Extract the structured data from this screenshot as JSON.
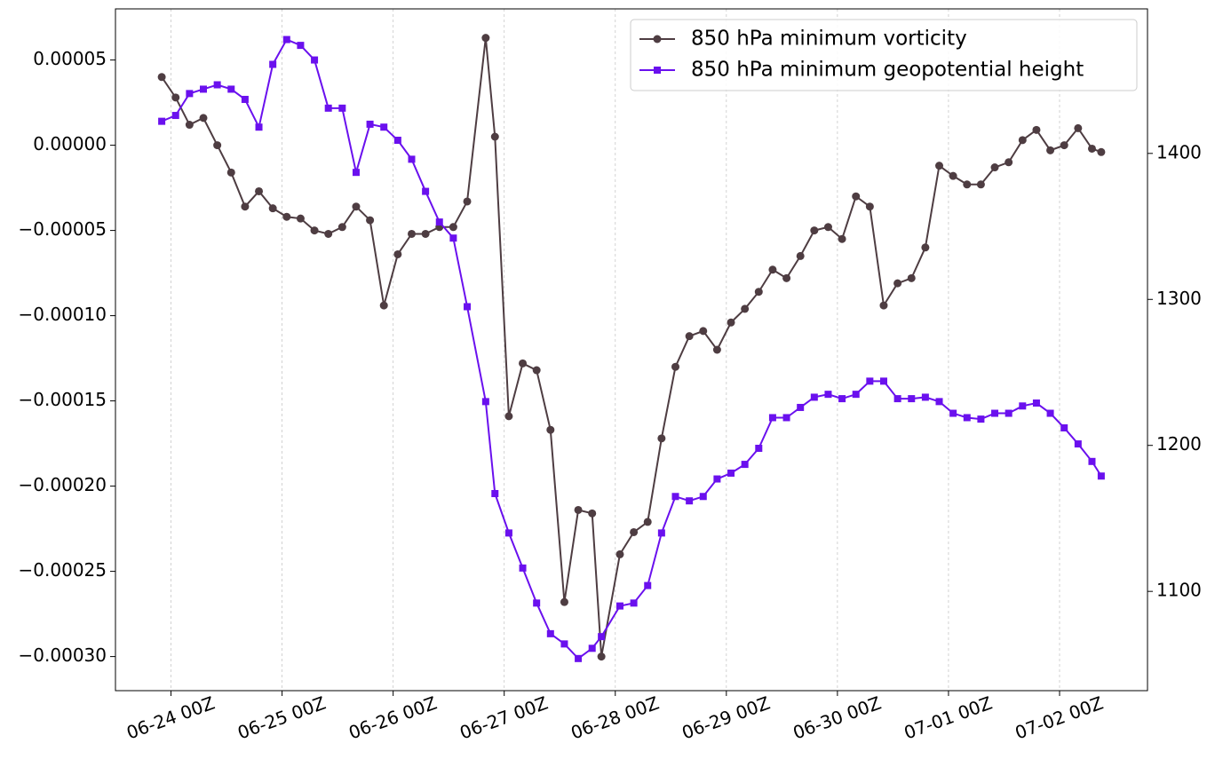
{
  "chart_data": {
    "type": "line",
    "x": [
      "06-23 22Z",
      "06-24 01Z",
      "06-24 04Z",
      "06-24 07Z",
      "06-24 10Z",
      "06-24 13Z",
      "06-24 16Z",
      "06-24 19Z",
      "06-24 22Z",
      "06-25 01Z",
      "06-25 04Z",
      "06-25 07Z",
      "06-25 10Z",
      "06-25 13Z",
      "06-25 16Z",
      "06-25 19Z",
      "06-25 22Z",
      "06-26 01Z",
      "06-26 04Z",
      "06-26 07Z",
      "06-26 10Z",
      "06-26 13Z",
      "06-26 16Z",
      "06-26 20Z",
      "06-26 22Z",
      "06-27 01Z",
      "06-27 04Z",
      "06-27 07Z",
      "06-27 10Z",
      "06-27 13Z",
      "06-27 16Z",
      "06-27 19Z",
      "06-27 21Z",
      "06-28 01Z",
      "06-28 04Z",
      "06-28 07Z",
      "06-28 10Z",
      "06-28 13Z",
      "06-28 16Z",
      "06-28 19Z",
      "06-28 22Z",
      "06-29 01Z",
      "06-29 04Z",
      "06-29 07Z",
      "06-29 10Z",
      "06-29 13Z",
      "06-29 16Z",
      "06-29 19Z",
      "06-29 22Z",
      "06-30 01Z",
      "06-30 04Z",
      "06-30 07Z",
      "06-30 10Z",
      "06-30 13Z",
      "06-30 16Z",
      "06-30 19Z",
      "06-30 22Z",
      "07-01 01Z",
      "07-01 04Z",
      "07-01 07Z",
      "07-01 10Z",
      "07-01 13Z",
      "07-01 16Z",
      "07-01 19Z",
      "07-01 22Z",
      "07-02 01Z",
      "07-02 04Z",
      "07-02 07Z",
      "07-02 09Z"
    ],
    "series": [
      {
        "name": "850 hPa minimum vorticity",
        "color": "#4e3d42",
        "marker": "circle",
        "values": [
          4e-05,
          2.8e-05,
          1.2e-05,
          1.6e-05,
          0,
          -1.6e-05,
          -3.6e-05,
          -2.7e-05,
          -3.7e-05,
          -4.2e-05,
          -4.3e-05,
          -5e-05,
          -5.2e-05,
          -4.8e-05,
          -3.6e-05,
          -4.4e-05,
          -9.4e-05,
          -6.4e-05,
          -5.2e-05,
          -5.2e-05,
          -4.8e-05,
          -4.8e-05,
          -3.3e-05,
          6.3e-05,
          5e-06,
          -0.000159,
          -0.000128,
          -0.000132,
          -0.000167,
          -0.000268,
          -0.000214,
          -0.000216,
          -0.0003,
          -0.00024,
          -0.000227,
          -0.000221,
          -0.000172,
          -0.00013,
          -0.000112,
          -0.000109,
          -0.00012,
          -0.000104,
          -9.6e-05,
          -8.6e-05,
          -7.3e-05,
          -7.8e-05,
          -6.5e-05,
          -5e-05,
          -4.8e-05,
          -5.5e-05,
          -3e-05,
          -3.6e-05,
          -9.4e-05,
          -8.1e-05,
          -7.8e-05,
          -6e-05,
          -1.2e-05,
          -1.8e-05,
          -2.3e-05,
          -2.3e-05,
          -1.3e-05,
          -1e-05,
          3e-06,
          9e-06,
          -3e-06,
          0,
          1e-05,
          -2e-06,
          -4e-06
        ]
      },
      {
        "name": "850 hPa minimum geopotential height",
        "color": "#6a10ee",
        "marker": "square",
        "axis": "y2",
        "values": [
          1422,
          1426,
          1441,
          1444,
          1447,
          1444,
          1437,
          1418,
          1461,
          1478,
          1474,
          1464,
          1431,
          1431,
          1387,
          1420,
          1418,
          1409,
          1396,
          1374,
          1353,
          1342,
          1295,
          1230,
          1167,
          1140,
          1116,
          1092,
          1071,
          1064,
          1054,
          1061,
          1069,
          1090,
          1092,
          1104,
          1140,
          1165,
          1162,
          1165,
          1177,
          1181,
          1187,
          1198,
          1219,
          1219,
          1226,
          1233,
          1235,
          1232,
          1235,
          1244,
          1244,
          1232,
          1232,
          1233,
          1230,
          1222,
          1219,
          1218,
          1222,
          1222,
          1227,
          1229,
          1222,
          1212,
          1201,
          1189,
          1179
        ]
      }
    ],
    "xlim": [
      "06-23 12Z",
      "07-02 19Z"
    ],
    "xticks": [
      "06-24 00Z",
      "06-25 00Z",
      "06-26 00Z",
      "06-27 00Z",
      "06-28 00Z",
      "06-29 00Z",
      "06-30 00Z",
      "07-01 00Z",
      "07-02 00Z"
    ],
    "ylim": [
      -0.00032,
      8e-05
    ],
    "yticks": [
      {
        "value": -0.0003,
        "label": "−0.00030"
      },
      {
        "value": -0.00025,
        "label": "−0.00025"
      },
      {
        "value": -0.0002,
        "label": "−0.00020"
      },
      {
        "value": -0.00015,
        "label": "−0.00015"
      },
      {
        "value": -0.0001,
        "label": "−0.00010"
      },
      {
        "value": -5e-05,
        "label": "−0.00005"
      },
      {
        "value": 0,
        "label": "0.00000"
      },
      {
        "value": 5e-05,
        "label": "0.00005"
      }
    ],
    "y2lim": [
      1032,
      1499
    ],
    "y2ticks": [
      1100,
      1200,
      1300,
      1400
    ],
    "grid": "x",
    "legend": "upper right"
  }
}
